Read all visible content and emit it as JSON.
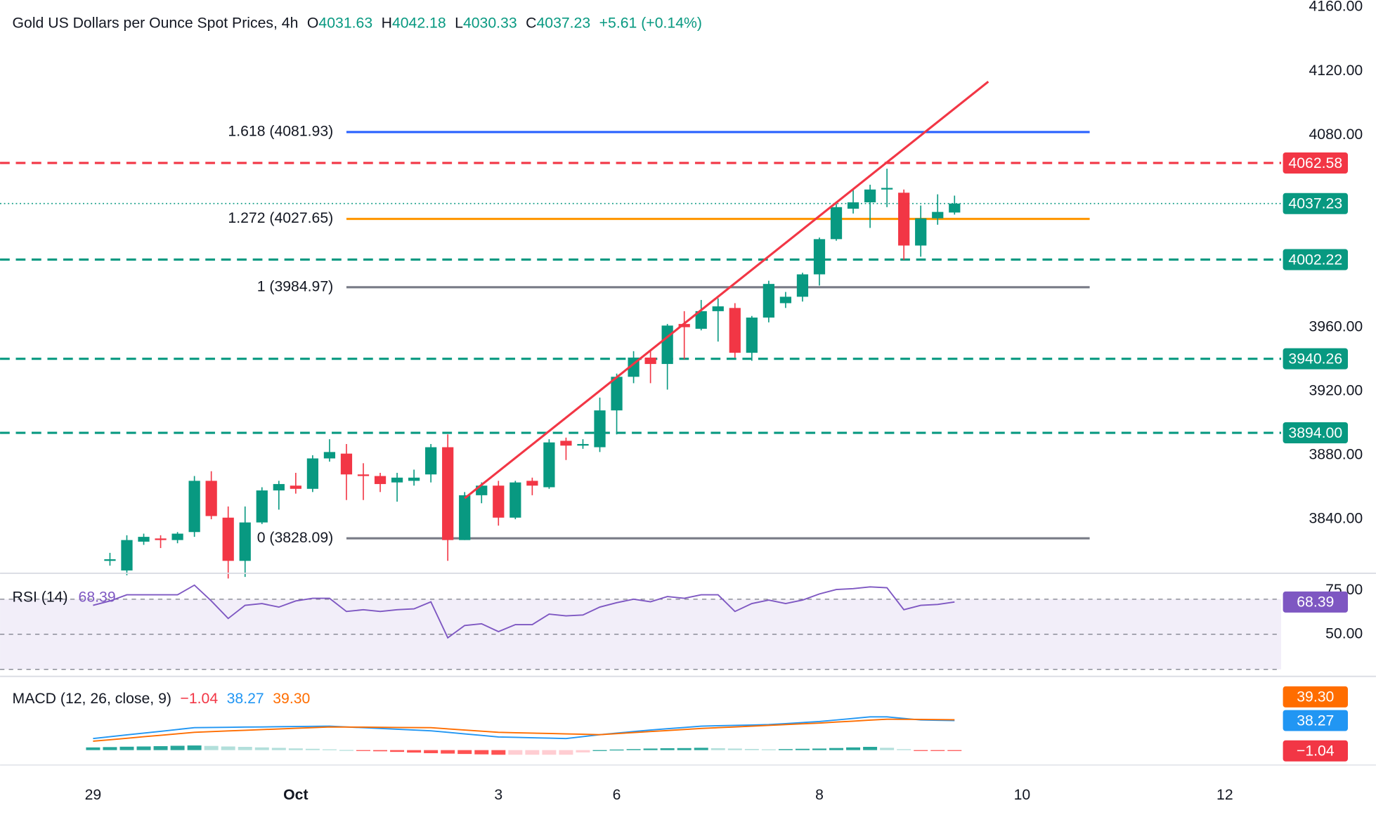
{
  "header": {
    "title": "Gold US Dollars per Ounce Spot Prices, 4h",
    "ohlc": [
      {
        "key": "O",
        "value": "4031.63"
      },
      {
        "key": "H",
        "value": "4042.18"
      },
      {
        "key": "L",
        "value": "4030.33"
      },
      {
        "key": "C",
        "value": "4037.23"
      }
    ],
    "change": "+5.61 (+0.14%)"
  },
  "chart_data": [
    {
      "type": "candlestick",
      "categories": [
        "29",
        null,
        null,
        null,
        null,
        null,
        null,
        null,
        null,
        null,
        null,
        null,
        "Oct",
        null,
        null,
        null,
        null,
        null,
        null,
        null,
        null,
        null,
        null,
        null,
        "3",
        null,
        null,
        null,
        null,
        null,
        null,
        "6",
        null,
        null,
        null,
        null,
        null,
        null,
        null,
        null,
        null,
        null,
        null,
        "8",
        null,
        null,
        null,
        null,
        null,
        null,
        null,
        null,
        null,
        null,
        null,
        "10",
        null,
        null,
        null,
        null,
        null,
        null,
        null,
        null,
        null,
        null,
        null,
        "12",
        null,
        null,
        null
      ],
      "open": [
        null,
        3814,
        3808,
        3826,
        3828,
        3827,
        3832,
        3864,
        3841,
        3814,
        3838,
        3858,
        3861,
        3859,
        3878,
        3881,
        3868,
        3867,
        3863,
        3864,
        3868,
        3885,
        3827,
        3855,
        3861,
        3841,
        3864,
        3860,
        3889,
        3886,
        3885,
        3908,
        3929,
        3941,
        3937,
        3962,
        3959,
        3970,
        3972,
        3944,
        3966,
        3975,
        3979,
        3993,
        4015,
        4034,
        4038,
        4046,
        4044,
        4011,
        4028,
        4031.63,
        null,
        null,
        null,
        null,
        null,
        null,
        null,
        null,
        null,
        null,
        null,
        null,
        null,
        null,
        null,
        null,
        null,
        null,
        null
      ],
      "high": [
        null,
        3819,
        3830,
        3831,
        3830,
        3832,
        3867,
        3870,
        3848,
        3848,
        3860,
        3864,
        3869,
        3880,
        3890,
        3887,
        3875,
        3869,
        3869,
        3871,
        3887,
        3893,
        3857,
        3863,
        3864,
        3864,
        3866,
        3890,
        3891,
        3890,
        3916,
        3931,
        3945,
        3946,
        3962,
        3970,
        3977,
        3978,
        3975,
        3967,
        3989,
        3982,
        3994,
        4016,
        4037,
        4046,
        4049,
        4059,
        4046,
        4036,
        4043,
        4042.18,
        null,
        null,
        null,
        null,
        null,
        null,
        null,
        null,
        null,
        null,
        null,
        null,
        null,
        null,
        null,
        null,
        null,
        null,
        null
      ],
      "low": [
        null,
        3811,
        3805,
        3824,
        3822,
        3825,
        3829,
        3840,
        3803,
        3804,
        3837,
        3846,
        3856,
        3857,
        3876,
        3852,
        3852,
        3857,
        3851,
        3861,
        3863,
        3814,
        3827,
        3850,
        3836,
        3840,
        3855,
        3859,
        3877,
        3884,
        3882,
        3893,
        3925,
        3925,
        3921,
        3940,
        3958,
        3951,
        3941,
        3939,
        3963,
        3972,
        3976,
        3986,
        4014,
        4031,
        4022,
        4035,
        4002,
        4004,
        4024,
        4030.33,
        null,
        null,
        null,
        null,
        null,
        null,
        null,
        null,
        null,
        null,
        null,
        null,
        null,
        null,
        null,
        null,
        null,
        null,
        null
      ],
      "close": [
        null,
        3815,
        3827,
        3829,
        3827,
        3831,
        3864,
        3842,
        3814,
        3838,
        3858,
        3862,
        3859,
        3878,
        3882,
        3868,
        3867,
        3862,
        3866,
        3866,
        3885,
        3827,
        3855,
        3861,
        3841,
        3863,
        3861,
        3888,
        3886,
        3887,
        3908,
        3929,
        3941,
        3937,
        3961,
        3960,
        3970,
        3973,
        3944,
        3966,
        3987,
        3979,
        3993,
        4015,
        4035,
        4038,
        4046,
        4047,
        4011,
        4028,
        4032,
        4037.23,
        null,
        null,
        null,
        null,
        null,
        null,
        null,
        null,
        null,
        null,
        null,
        null,
        null,
        null,
        null,
        null,
        null,
        null,
        null
      ],
      "up_color": "#089981",
      "down_color": "#f23645",
      "ylim": [
        3806.5,
        4164.4
      ],
      "yticks": [
        {
          "value": 4160,
          "label": "4160.00"
        },
        {
          "value": 4120,
          "label": "4120.00"
        },
        {
          "value": 4080,
          "label": "4080.00"
        },
        {
          "value": 3960,
          "label": "3960.00"
        },
        {
          "value": 3920,
          "label": "3920.00"
        },
        {
          "value": 3880,
          "label": "3880.00"
        },
        {
          "value": 3840,
          "label": "3840.00"
        }
      ],
      "grid": false,
      "levels": [
        {
          "value": 4062.58,
          "label": "4062.58",
          "color": "#f23645",
          "style": "dashed"
        },
        {
          "value": 4037.23,
          "label": "4037.23",
          "color": "#089981",
          "style": "dotted"
        },
        {
          "value": 4002.22,
          "label": "4002.22",
          "color": "#089981",
          "style": "dashed"
        },
        {
          "value": 3940.26,
          "label": "3940.26",
          "color": "#089981",
          "style": "dashed"
        },
        {
          "value": 3894,
          "label": "3894.00",
          "color": "#089981",
          "style": "dashed"
        }
      ],
      "fib": [
        {
          "value": 4081.93,
          "label": "1.618 (4081.93)",
          "color": "#2962ff"
        },
        {
          "value": 4027.65,
          "label": "1.272 (4027.65)",
          "color": "#ff9800"
        },
        {
          "value": 3984.97,
          "label": "1 (3984.97)",
          "color": "#787b86"
        },
        {
          "value": 3828.09,
          "label": "0 (3828.09)",
          "color": "#787b86"
        }
      ],
      "fib_range": [
        15,
        59
      ],
      "trendline": {
        "x": [
          22,
          53
        ],
        "y": [
          3853.1,
          4113.4
        ],
        "color": "#f23645"
      }
    },
    {
      "type": "line",
      "series": [
        {
          "name": "RSI (14)",
          "color": "#7e57c2",
          "value_label": "68.39",
          "values": [
            66.5,
            69,
            72.5,
            72.5,
            72.5,
            72.5,
            78,
            69,
            59,
            66.5,
            67.5,
            65.5,
            69,
            70.5,
            70.5,
            63,
            64,
            63,
            64,
            64.5,
            68.5,
            48,
            55,
            56,
            51.5,
            55.5,
            55.5,
            61.5,
            60.5,
            61,
            65.5,
            68,
            70,
            68.5,
            71.5,
            70.5,
            72.5,
            72.5,
            63,
            67.5,
            69.5,
            67.5,
            69.5,
            73,
            75.5,
            76,
            77,
            76.5,
            64,
            66.5,
            67,
            68.39,
            null,
            null,
            null,
            null,
            null,
            null,
            null,
            null,
            null,
            null,
            null,
            null,
            null,
            null,
            null,
            null,
            null,
            null,
            null
          ]
        }
      ],
      "ylim": [
        26.5,
        84
      ],
      "yticks": [
        {
          "value": 75,
          "label": "75.00"
        },
        {
          "value": 50,
          "label": "50.00"
        }
      ],
      "band": [
        30,
        70
      ],
      "levels": [
        70,
        50,
        30
      ]
    },
    {
      "type": "line",
      "title": "MACD (12, 26, close, 9)",
      "series": [
        {
          "type": "bar",
          "value_label": "−1.04",
          "color": "#f23645",
          "hist_colors": [
            "#26a69a",
            "#b2dfdb",
            "#ffcdd2",
            "#ff5252"
          ],
          "values": [
            3.5,
            3.9,
            4.4,
            4.7,
            5.1,
            5.6,
            6,
            5.4,
            4.7,
            4.2,
            3.5,
            2.9,
            2.2,
            1.7,
            1,
            0.2,
            -0.7,
            -1.5,
            -2.3,
            -3.2,
            -4,
            -4.5,
            -5,
            -5.5,
            -6,
            -6,
            -6,
            -6,
            -6,
            -3,
            0,
            0.7,
            1.3,
            2,
            2.4,
            2.6,
            3,
            2.5,
            2,
            1.5,
            1,
            1.3,
            1.7,
            2,
            2.7,
            3.5,
            4.2,
            3,
            1.2,
            -0.7,
            -0.9,
            -1.04,
            null,
            null,
            null,
            null,
            null,
            null,
            null,
            null,
            null,
            null,
            null,
            null,
            null,
            null,
            null,
            null,
            null,
            null,
            null
          ]
        },
        {
          "type": "line",
          "value_label": "38.27",
          "color": "#2196f3",
          "values": [
            15,
            17.3,
            19.7,
            22,
            24.3,
            26.7,
            29,
            29.3,
            29.5,
            29.8,
            30,
            30.3,
            30.5,
            30.8,
            31,
            30,
            29,
            28,
            27,
            26,
            25,
            23,
            21,
            19,
            17,
            16.5,
            16,
            15.5,
            15,
            17.5,
            20,
            22,
            24,
            26,
            27.7,
            29.3,
            31,
            31.5,
            32,
            32.5,
            33,
            34.3,
            35.7,
            37,
            39,
            41,
            43,
            43,
            41,
            39,
            38.6,
            38.27,
            null,
            null,
            null,
            null,
            null,
            null,
            null,
            null,
            null,
            null,
            null,
            null,
            null,
            null,
            null,
            null,
            null,
            null,
            null
          ]
        },
        {
          "type": "line",
          "value_label": "39.30",
          "color": "#ff6d00",
          "values": [
            11.5,
            13.4,
            15.3,
            17.3,
            19.2,
            21.1,
            23,
            23.9,
            24.8,
            25.6,
            26.5,
            27.4,
            28.3,
            29.1,
            30,
            29.8,
            29.7,
            29.5,
            29.3,
            29.2,
            29,
            27.5,
            26,
            24.5,
            23,
            22.5,
            22,
            21.5,
            21,
            20.5,
            20,
            21.3,
            22.7,
            24,
            25.3,
            26.7,
            28,
            29,
            30,
            31,
            32,
            33,
            34,
            35,
            36.3,
            37.5,
            38.8,
            40,
            39.8,
            39.7,
            39.5,
            39.3,
            null,
            null,
            null,
            null,
            null,
            null,
            null,
            null,
            null,
            null,
            null,
            null,
            null,
            null,
            null,
            null,
            null,
            null,
            null
          ]
        }
      ],
      "ylim": [
        -17,
        92
      ]
    }
  ]
}
